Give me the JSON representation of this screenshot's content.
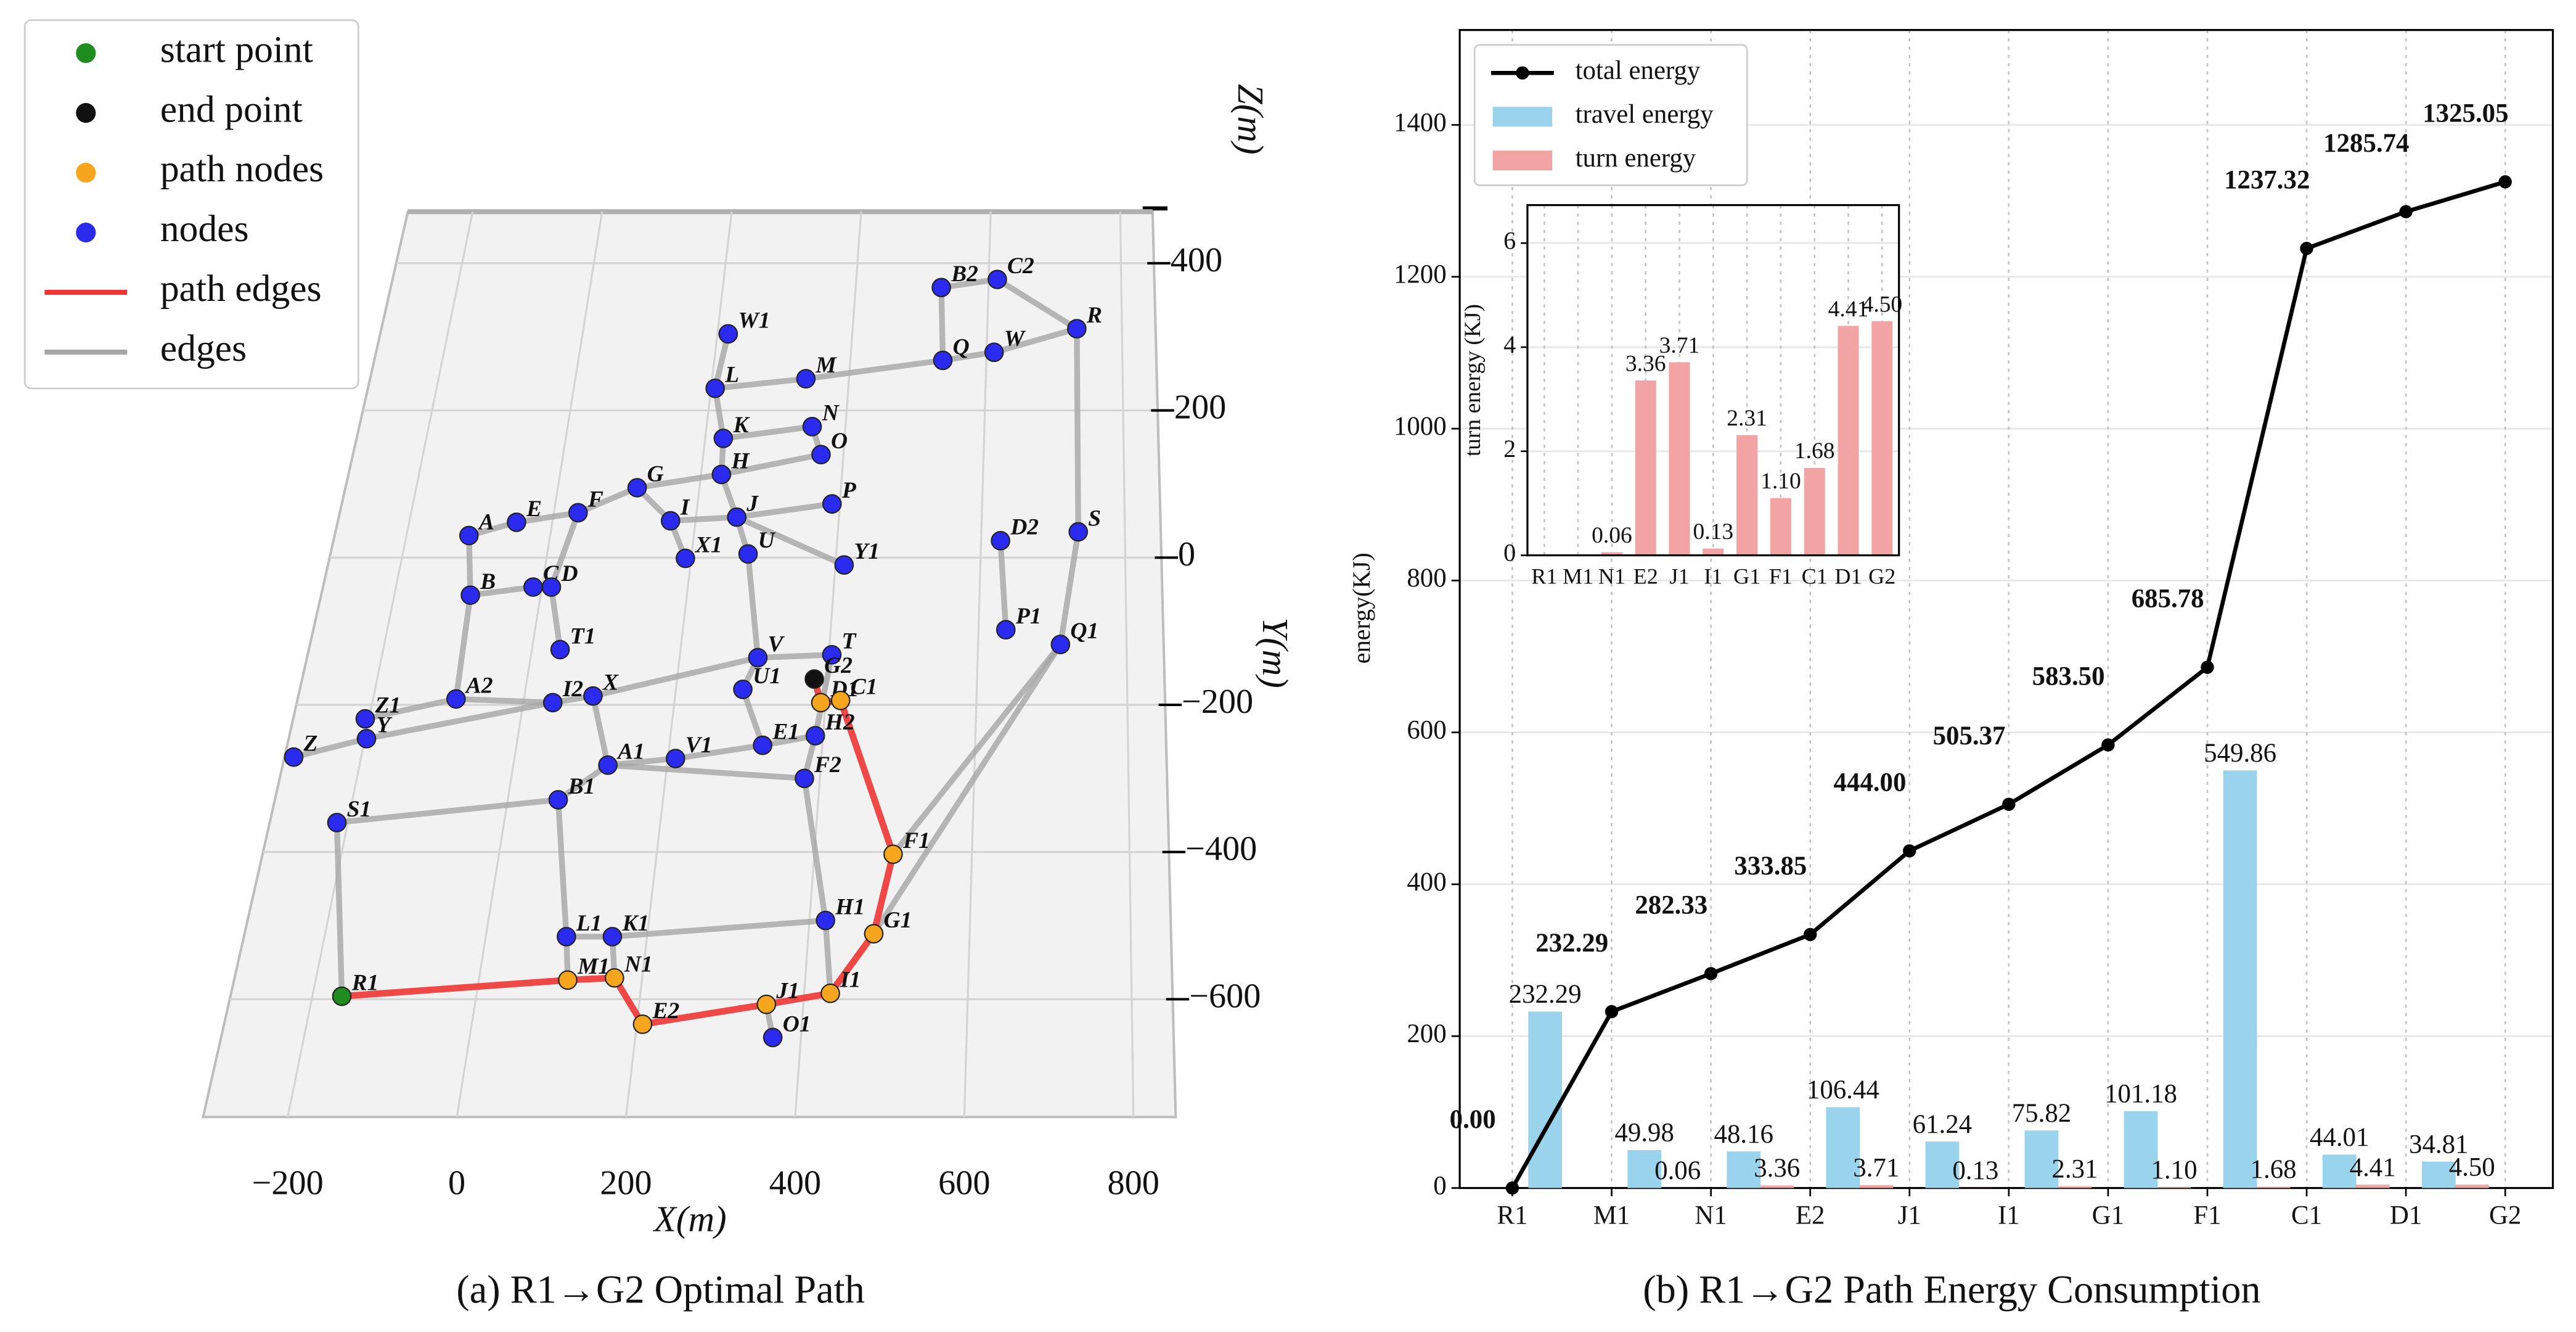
{
  "chart_data": [
    {
      "type": "network3d",
      "caption": "(a) R1→G2 Optimal Path",
      "xlabel": "X(m)",
      "ylabel": "Y(m)",
      "zlabel": "Z(m)",
      "xlim": [
        -300,
        850
      ],
      "ylim": [
        -760,
        470
      ],
      "xticks": [
        {
          "value": -200,
          "label": "−200"
        },
        0,
        200,
        400,
        600,
        800
      ],
      "yticks": [
        {
          "value": -600,
          "label": "−600"
        },
        {
          "value": -400,
          "label": "−400"
        },
        {
          "value": -200,
          "label": "−200"
        },
        0,
        200,
        400
      ],
      "grid": true,
      "legend_position": "upper left",
      "legend": [
        {
          "name": "start point",
          "kind": "start",
          "color": "#1e8c1e"
        },
        {
          "name": "end point",
          "kind": "end",
          "color": "#111111"
        },
        {
          "name": "path nodes",
          "kind": "path",
          "color": "#f5a51e"
        },
        {
          "name": "nodes",
          "kind": "node",
          "color": "#2b2bef"
        },
        {
          "name": "path edges",
          "kind": "path_edge",
          "color": "#f03535"
        },
        {
          "name": "edges",
          "kind": "edge",
          "color": "#a6a6a6"
        }
      ],
      "nodes": [
        {
          "label": "A",
          "x": -113,
          "y": 30,
          "kind": "node"
        },
        {
          "label": "B",
          "x": -96,
          "y": -51,
          "kind": "node"
        },
        {
          "label": "E",
          "x": -50,
          "y": 48,
          "kind": "node"
        },
        {
          "label": "F",
          "x": 34,
          "y": 61,
          "kind": "node"
        },
        {
          "label": "C",
          "x": -12,
          "y": -40,
          "kind": "node"
        },
        {
          "label": "D",
          "x": 13,
          "y": -40,
          "kind": "node"
        },
        {
          "label": "G",
          "x": 112,
          "y": 95,
          "kind": "node"
        },
        {
          "label": "I",
          "x": 165,
          "y": 50,
          "kind": "node"
        },
        {
          "label": "X1",
          "x": 192,
          "y": -1,
          "kind": "node"
        },
        {
          "label": "J",
          "x": 257,
          "y": 55,
          "kind": "node"
        },
        {
          "label": "H",
          "x": 229,
          "y": 113,
          "kind": "node"
        },
        {
          "label": "K",
          "x": 226,
          "y": 162,
          "kind": "node"
        },
        {
          "label": "L",
          "x": 206,
          "y": 230,
          "kind": "node"
        },
        {
          "label": "W1",
          "x": 216,
          "y": 304,
          "kind": "node"
        },
        {
          "label": "M",
          "x": 337,
          "y": 243,
          "kind": "node"
        },
        {
          "label": "N",
          "x": 352,
          "y": 178,
          "kind": "node"
        },
        {
          "label": "O",
          "x": 368,
          "y": 140,
          "kind": "node"
        },
        {
          "label": "P",
          "x": 389,
          "y": 73,
          "kind": "node"
        },
        {
          "label": "U",
          "x": 278,
          "y": 5,
          "kind": "node"
        },
        {
          "label": "Y1",
          "x": 412,
          "y": -10,
          "kind": "node"
        },
        {
          "label": "V",
          "x": 305,
          "y": -136,
          "kind": "node"
        },
        {
          "label": "T",
          "x": 404,
          "y": -132,
          "kind": "node"
        },
        {
          "label": "G2",
          "x": 383,
          "y": -165,
          "kind": "end"
        },
        {
          "label": "U1",
          "x": 289,
          "y": -179,
          "kind": "node"
        },
        {
          "label": "D1",
          "x": 394,
          "y": -197,
          "kind": "path"
        },
        {
          "label": "C1",
          "x": 420,
          "y": -194,
          "kind": "path"
        },
        {
          "label": "E1",
          "x": 322,
          "y": -255,
          "kind": "node"
        },
        {
          "label": "H2",
          "x": 390,
          "y": -242,
          "kind": "node"
        },
        {
          "label": "F2",
          "x": 380,
          "y": -300,
          "kind": "node"
        },
        {
          "label": "T1",
          "x": 38,
          "y": -125,
          "kind": "node"
        },
        {
          "label": "I2",
          "x": 39,
          "y": -197,
          "kind": "node"
        },
        {
          "label": "X",
          "x": 91,
          "y": -188,
          "kind": "node"
        },
        {
          "label": "A2",
          "x": -90,
          "y": -192,
          "kind": "node"
        },
        {
          "label": "Z1",
          "x": -205,
          "y": -219,
          "kind": "node"
        },
        {
          "label": "Y",
          "x": -198,
          "y": -246,
          "kind": "node"
        },
        {
          "label": "Z",
          "x": -288,
          "y": -271,
          "kind": "node"
        },
        {
          "label": "A1",
          "x": 123,
          "y": -282,
          "kind": "node"
        },
        {
          "label": "V1",
          "x": 210,
          "y": -273,
          "kind": "node"
        },
        {
          "label": "B1",
          "x": 65,
          "y": -329,
          "kind": "node"
        },
        {
          "label": "S1",
          "x": -214,
          "y": -360,
          "kind": "node"
        },
        {
          "label": "F1",
          "x": 500,
          "y": -403,
          "kind": "path"
        },
        {
          "label": "H1",
          "x": 420,
          "y": -493,
          "kind": "node"
        },
        {
          "label": "G1",
          "x": 481,
          "y": -511,
          "kind": "path"
        },
        {
          "label": "L1",
          "x": 100,
          "y": -515,
          "kind": "node"
        },
        {
          "label": "K1",
          "x": 157,
          "y": -515,
          "kind": "node"
        },
        {
          "label": "M1",
          "x": 109,
          "y": -574,
          "kind": "path"
        },
        {
          "label": "N1",
          "x": 166,
          "y": -571,
          "kind": "path"
        },
        {
          "label": "E2",
          "x": 207,
          "y": -634,
          "kind": "path"
        },
        {
          "label": "J1",
          "x": 355,
          "y": -607,
          "kind": "path"
        },
        {
          "label": "I1",
          "x": 432,
          "y": -592,
          "kind": "path"
        },
        {
          "label": "O1",
          "x": 366,
          "y": -652,
          "kind": "node"
        },
        {
          "label": "R1",
          "x": -164,
          "y": -596,
          "kind": "start"
        },
        {
          "label": "B2",
          "x": 529,
          "y": 367,
          "kind": "node"
        },
        {
          "label": "C2",
          "x": 613,
          "y": 378,
          "kind": "node"
        },
        {
          "label": "R",
          "x": 733,
          "y": 311,
          "kind": "node"
        },
        {
          "label": "Q",
          "x": 536,
          "y": 268,
          "kind": "node"
        },
        {
          "label": "W",
          "x": 611,
          "y": 279,
          "kind": "node"
        },
        {
          "label": "D2",
          "x": 627,
          "y": 23,
          "kind": "node"
        },
        {
          "label": "S",
          "x": 735,
          "y": 35,
          "kind": "node"
        },
        {
          "label": "P1",
          "x": 637,
          "y": -98,
          "kind": "node"
        },
        {
          "label": "Q1",
          "x": 711,
          "y": -118,
          "kind": "node"
        }
      ],
      "edges": [
        [
          "A",
          "B"
        ],
        [
          "A",
          "E"
        ],
        [
          "E",
          "F"
        ],
        [
          "F",
          "G"
        ],
        [
          "G",
          "H"
        ],
        [
          "G",
          "I"
        ],
        [
          "I",
          "J"
        ],
        [
          "I",
          "X1"
        ],
        [
          "H",
          "J"
        ],
        [
          "H",
          "K"
        ],
        [
          "K",
          "L"
        ],
        [
          "L",
          "W1"
        ],
        [
          "L",
          "M"
        ],
        [
          "M",
          "Q"
        ],
        [
          "Q",
          "W"
        ],
        [
          "W",
          "R"
        ],
        [
          "R",
          "C2"
        ],
        [
          "C2",
          "B2"
        ],
        [
          "B2",
          "Q"
        ],
        [
          "R",
          "S"
        ],
        [
          "S",
          "Q1"
        ],
        [
          "D2",
          "P1"
        ],
        [
          "Q1",
          "F1"
        ],
        [
          "Q1",
          "G1"
        ],
        [
          "K",
          "N"
        ],
        [
          "N",
          "O"
        ],
        [
          "H",
          "O"
        ],
        [
          "J",
          "P"
        ],
        [
          "J",
          "U"
        ],
        [
          "J",
          "Y1"
        ],
        [
          "U",
          "V"
        ],
        [
          "V",
          "T"
        ],
        [
          "T",
          "H2"
        ],
        [
          "V",
          "U1"
        ],
        [
          "U1",
          "E1"
        ],
        [
          "E1",
          "H2"
        ],
        [
          "H2",
          "F2"
        ],
        [
          "F2",
          "H1"
        ],
        [
          "H1",
          "K1"
        ],
        [
          "K1",
          "L1"
        ],
        [
          "L1",
          "B1"
        ],
        [
          "L1",
          "M1"
        ],
        [
          "K1",
          "N1"
        ],
        [
          "H1",
          "I1"
        ],
        [
          "B1",
          "A1"
        ],
        [
          "D",
          "T1"
        ],
        [
          "X",
          "A1"
        ],
        [
          "F",
          "D"
        ],
        [
          "B",
          "C"
        ],
        [
          "C",
          "D"
        ],
        [
          "B",
          "A2"
        ],
        [
          "Z1",
          "A2"
        ],
        [
          "A2",
          "I2"
        ],
        [
          "I2",
          "X"
        ],
        [
          "X",
          "V"
        ],
        [
          "Z",
          "Y"
        ],
        [
          "Y",
          "I2"
        ],
        [
          "A1",
          "V1"
        ],
        [
          "V1",
          "E1"
        ],
        [
          "A1",
          "F2"
        ],
        [
          "S1",
          "B1"
        ],
        [
          "S1",
          "R1"
        ],
        [
          "J1",
          "O1"
        ]
      ],
      "path": [
        "R1",
        "M1",
        "N1",
        "E2",
        "J1",
        "I1",
        "G1",
        "F1",
        "C1",
        "D1",
        "G2"
      ]
    },
    {
      "type": "combo",
      "caption": "(b) R1→G2 Path Energy Consumption",
      "ylabel": "energy(KJ)",
      "categories": [
        "R1",
        "M1",
        "N1",
        "E2",
        "J1",
        "I1",
        "G1",
        "F1",
        "C1",
        "D1",
        "G2"
      ],
      "ylim": [
        0,
        1525
      ],
      "yticks": [
        0,
        200,
        400,
        600,
        800,
        1000,
        1200,
        1400
      ],
      "grid": true,
      "legend_position": "upper left",
      "series": [
        {
          "name": "total energy",
          "kind": "line",
          "color": "#000000",
          "values": [
            0,
            232.29,
            282.33,
            333.85,
            444,
            505.37,
            583.5,
            685.78,
            1237.32,
            1285.74,
            1325.05
          ],
          "value_labels": [
            "0.00",
            "232.29",
            "282.33",
            "333.85",
            "444.00",
            "505.37",
            "583.50",
            "685.78",
            "1237.32",
            "1285.74",
            "1325.05"
          ]
        },
        {
          "name": "travel energy",
          "kind": "bar",
          "color": "#9ad4ec",
          "values": [
            null,
            232.29,
            49.98,
            48.16,
            106.44,
            61.24,
            75.82,
            101.18,
            549.86,
            44.01,
            34.81
          ],
          "value_labels": [
            null,
            "232.29",
            "49.98",
            "48.16",
            "106.44",
            "61.24",
            "75.82",
            "101.18",
            "549.86",
            "44.01",
            "34.81"
          ]
        },
        {
          "name": "turn energy",
          "kind": "bar",
          "color": "#f2a3a3",
          "values": [
            null,
            null,
            0.06,
            3.36,
            3.71,
            0.13,
            2.31,
            1.1,
            1.68,
            4.41,
            4.5
          ],
          "value_labels": [
            null,
            null,
            "0.06",
            "3.36",
            "3.71",
            "0.13",
            "2.31",
            "1.10",
            "1.68",
            "4.41",
            "4.50"
          ]
        }
      ]
    },
    {
      "type": "bar",
      "ylabel": "turn energy (KJ)",
      "categories": [
        "R1",
        "M1",
        "N1",
        "E2",
        "J1",
        "I1",
        "G1",
        "F1",
        "C1",
        "D1",
        "G2"
      ],
      "values": [
        null,
        null,
        0.06,
        3.36,
        3.71,
        0.13,
        2.31,
        1.1,
        1.68,
        4.41,
        4.5
      ],
      "value_labels": [
        null,
        null,
        "0.06",
        "3.36",
        "3.71",
        "0.13",
        "2.31",
        "1.10",
        "1.68",
        "4.41",
        "4.50"
      ],
      "color": "#f2a3a3",
      "ylim": [
        0,
        6.73
      ],
      "yticks": [
        0,
        2,
        4,
        6
      ],
      "grid": true
    }
  ]
}
